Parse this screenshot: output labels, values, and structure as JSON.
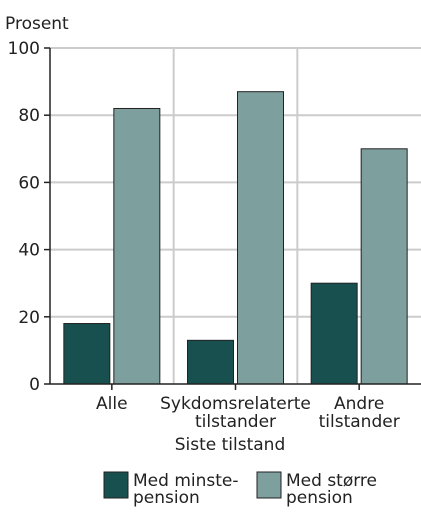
{
  "chart_data": {
    "type": "bar",
    "title": "",
    "ylabel": "Prosent",
    "xlabel": "Siste tilstand",
    "ylim": [
      0,
      100
    ],
    "yticks": [
      0,
      20,
      40,
      60,
      80,
      100
    ],
    "grid": true,
    "legend_position": "bottom",
    "categories": [
      [
        "Alle"
      ],
      [
        "Sykdomsrelaterte",
        "tilstander"
      ],
      [
        "Andre",
        "tilstander"
      ]
    ],
    "series": [
      {
        "name": [
          "Med minste-",
          "pension"
        ],
        "color": "#17504f",
        "values": [
          18,
          13,
          30
        ]
      },
      {
        "name": [
          "Med større",
          "pension"
        ],
        "color": "#7d9f9d",
        "values": [
          82,
          87,
          70
        ]
      }
    ],
    "colors": {
      "grid": "#cccccc",
      "axis": "#222222",
      "bar_stroke": "#222222"
    }
  }
}
